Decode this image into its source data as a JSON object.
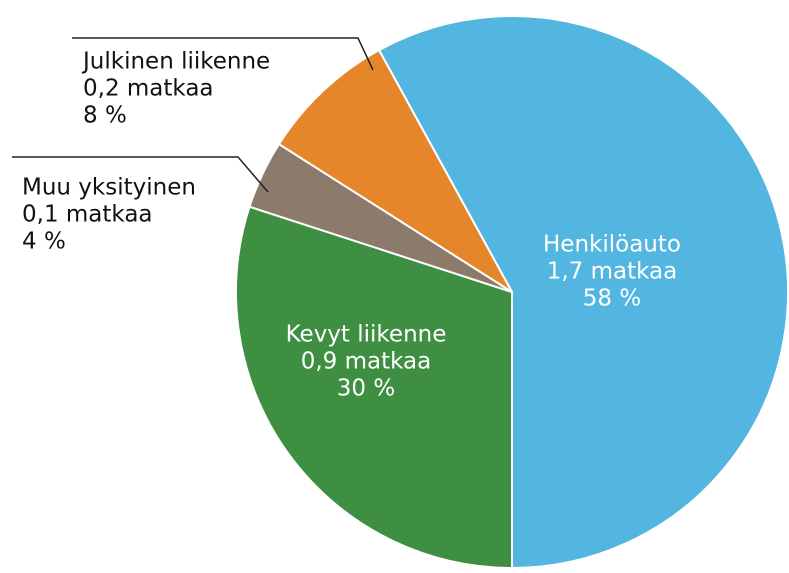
{
  "chart_data": {
    "type": "pie",
    "categories": [
      "Henkilöauto",
      "Kevyt liikenne",
      "Muu yksityinen",
      "Julkinen liikenne"
    ],
    "values": [
      58,
      30,
      4,
      8
    ],
    "value_labels": [
      "58 %",
      "30 %",
      "4 %",
      "8 %"
    ],
    "trip_labels": [
      "1,7 matkaa",
      "0,9 matkaa",
      "0,1 matkaa",
      "0,2 matkaa"
    ],
    "colors": [
      "#52b6e0",
      "#3f8f43",
      "#8c7b6b",
      "#e5862b"
    ]
  }
}
